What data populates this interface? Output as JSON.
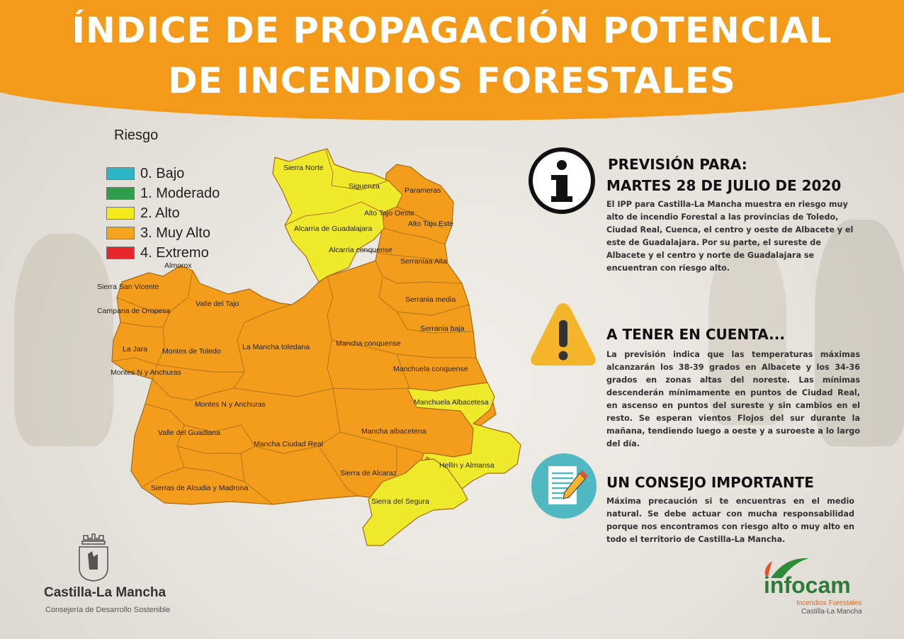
{
  "title": {
    "line1": "ÍNDICE DE PROPAGACIÓN POTENCIAL",
    "line2": "DE INCENDIOS FORESTALES"
  },
  "legend": {
    "title": "Riesgo",
    "items": [
      {
        "label": "0. Bajo",
        "color": "#2bb6c8"
      },
      {
        "label": "1. Moderado",
        "color": "#2f9e4b"
      },
      {
        "label": "2. Alto",
        "color": "#f2ea1c"
      },
      {
        "label": "3. Muy Alto",
        "color": "#f5a51e"
      },
      {
        "label": "4. Extremo",
        "color": "#e8262b"
      }
    ]
  },
  "colors": {
    "alto": "#f0ea2c",
    "muy_alto": "#f49d1d",
    "border": "#a86a10",
    "banner": "#f39a1b"
  },
  "regions": [
    {
      "name": "Sierra Norte",
      "risk": "alto"
    },
    {
      "name": "Siguenza",
      "risk": "alto"
    },
    {
      "name": "Parameras",
      "risk": "muy_alto"
    },
    {
      "name": "Alto Tajo Oeste",
      "risk": "muy_alto"
    },
    {
      "name": "Alto Tajo Este",
      "risk": "muy_alto"
    },
    {
      "name": "Alcarria de Guadalajara",
      "risk": "alto"
    },
    {
      "name": "Serraniaa Alta",
      "risk": "muy_alto"
    },
    {
      "name": "Alcarria conquense",
      "risk": "alto"
    },
    {
      "name": "Serrania media",
      "risk": "muy_alto"
    },
    {
      "name": "Serrania baja",
      "risk": "muy_alto"
    },
    {
      "name": "Sierra San Vicente",
      "risk": "muy_alto"
    },
    {
      "name": "Almorox",
      "risk": "muy_alto"
    },
    {
      "name": "Valle del Tajo",
      "risk": "muy_alto"
    },
    {
      "name": "Campana de Oropesa",
      "risk": "muy_alto"
    },
    {
      "name": "Montes de Toledo",
      "risk": "muy_alto"
    },
    {
      "name": "La Jara",
      "risk": "muy_alto"
    },
    {
      "name": "La Mancha toledana",
      "risk": "muy_alto"
    },
    {
      "name": "Mancha conquense",
      "risk": "muy_alto"
    },
    {
      "name": "Manchuela conquense",
      "risk": "muy_alto"
    },
    {
      "name": "Montes N y Anchuras",
      "risk": "muy_alto"
    },
    {
      "name": "Montes N y Anchuras",
      "risk": "muy_alto"
    },
    {
      "name": "Manchuela Albacetesa",
      "risk": "alto"
    },
    {
      "name": "Valle del Guadiana",
      "risk": "muy_alto"
    },
    {
      "name": "Mancha albacetena",
      "risk": "muy_alto"
    },
    {
      "name": "Mancha Ciudad Real",
      "risk": "muy_alto"
    },
    {
      "name": "Hellin y Almansa",
      "risk": "alto"
    },
    {
      "name": "Sierra de Alcaraz",
      "risk": "muy_alto"
    },
    {
      "name": "Sierras de Alcudia y Madrona",
      "risk": "muy_alto"
    },
    {
      "name": "Sierra del Segura",
      "risk": "alto"
    }
  ],
  "forecast": {
    "icon": "info-icon",
    "heading1": "PREVISIÓN PARA:",
    "heading2": "MARTES 28 DE JULIO DE 2020",
    "body": "El IPP para Castilla-La Mancha muestra en riesgo muy alto de incendio Forestal a las provincias de Toledo, Ciudad Real, Cuenca, el centro y oeste de Albacete y el este de Guadalajara. Por su parte, el sureste de Albacete y el centro y norte de Guadalajara se encuentran con riesgo alto."
  },
  "warning": {
    "icon": "warning-icon",
    "heading": "A TENER EN CUENTA...",
    "body": "La previsión indica que las temperaturas máximas alcanzarán los 38-39 grados en Albacete y los 34-36 grados en zonas altas del noreste. Las mínimas descenderán mínimamente en puntos de Ciudad Real, en ascenso en puntos del sureste y sin cambios en el resto. Se esperan vientos Flojos del sur durante la mañana, tendiendo luego a oeste y a suroeste a lo largo del día."
  },
  "advice": {
    "icon": "document-pencil-icon",
    "heading": "UN CONSEJO IMPORTANTE",
    "body": "Máxima precaución si te encuentras en el medio natural. Se debe actuar con mucha responsabilidad porque nos encontramos con riesgo alto o muy alto en todo el territorio de Castilla-La Mancha."
  },
  "logos": {
    "jccm_name": "Castilla-La Mancha",
    "jccm_sub": "Consejería de Desarrollo Sostenible",
    "infocam_name": "infocam",
    "infocam_sub1": "Incendios Forestales",
    "infocam_sub2": "Castilla-La Mancha"
  }
}
